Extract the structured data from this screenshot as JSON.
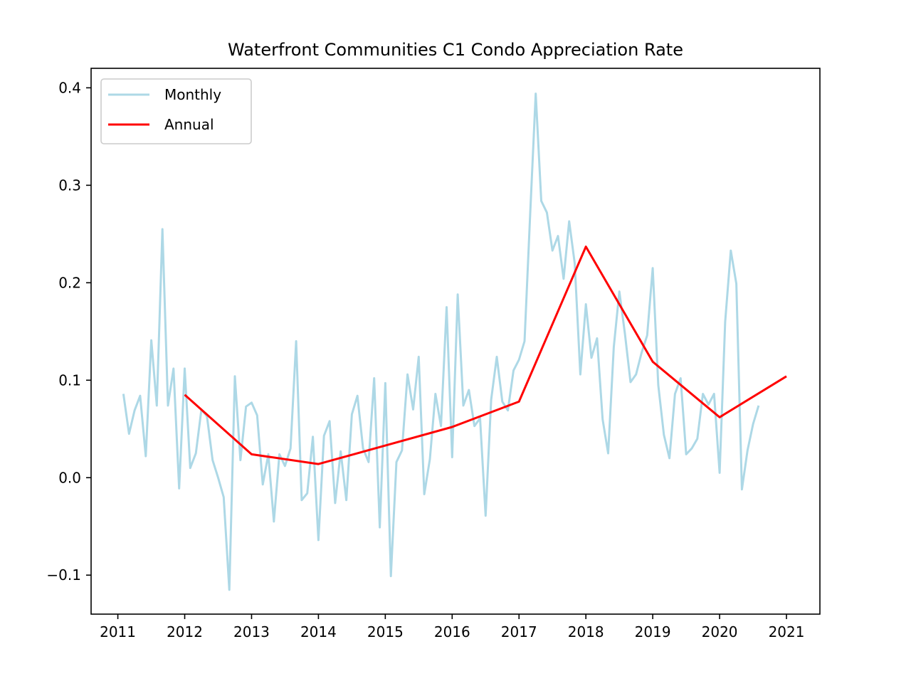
{
  "chart_data": {
    "type": "line",
    "title": "Waterfront Communities C1 Condo Appreciation Rate",
    "xlabel": "",
    "ylabel": "",
    "xlim": [
      2010.6,
      2021.5
    ],
    "ylim": [
      -0.14,
      0.42
    ],
    "x_ticks": [
      "2011",
      "2012",
      "2013",
      "2014",
      "2015",
      "2016",
      "2017",
      "2018",
      "2019",
      "2020",
      "2021"
    ],
    "y_ticks": [
      "−0.1",
      "0.0",
      "0.1",
      "0.2",
      "0.3",
      "0.4"
    ],
    "grid": false,
    "legend": {
      "position": "top-left"
    },
    "series": [
      {
        "name": "Monthly",
        "color": "#add8e6",
        "x": [
          2011.083,
          2011.167,
          2011.25,
          2011.333,
          2011.417,
          2011.5,
          2011.583,
          2011.667,
          2011.75,
          2011.833,
          2011.917,
          2012.0,
          2012.083,
          2012.167,
          2012.25,
          2012.333,
          2012.417,
          2012.5,
          2012.583,
          2012.667,
          2012.75,
          2012.833,
          2012.917,
          2013.0,
          2013.083,
          2013.167,
          2013.25,
          2013.333,
          2013.417,
          2013.5,
          2013.583,
          2013.667,
          2013.75,
          2013.833,
          2013.917,
          2014.0,
          2014.083,
          2014.167,
          2014.25,
          2014.333,
          2014.417,
          2014.5,
          2014.583,
          2014.667,
          2014.75,
          2014.833,
          2014.917,
          2015.0,
          2015.083,
          2015.167,
          2015.25,
          2015.333,
          2015.417,
          2015.5,
          2015.583,
          2015.667,
          2015.75,
          2015.833,
          2015.917,
          2016.0,
          2016.083,
          2016.167,
          2016.25,
          2016.333,
          2016.417,
          2016.5,
          2016.583,
          2016.667,
          2016.75,
          2016.833,
          2016.917,
          2017.0,
          2017.083,
          2017.167,
          2017.25,
          2017.333,
          2017.417,
          2017.5,
          2017.583,
          2017.667,
          2017.75,
          2017.833,
          2017.917,
          2018.0,
          2018.083,
          2018.167,
          2018.25,
          2018.333,
          2018.417,
          2018.5,
          2018.583,
          2018.667,
          2018.75,
          2018.833,
          2018.917,
          2019.0,
          2019.083,
          2019.167,
          2019.25,
          2019.333,
          2019.417,
          2019.5,
          2019.583,
          2019.667,
          2019.75,
          2019.833,
          2019.917,
          2020.0,
          2020.083,
          2020.167,
          2020.25,
          2020.333,
          2020.417,
          2020.5,
          2020.583
        ],
        "values": [
          0.086,
          0.045,
          0.069,
          0.084,
          0.022,
          0.141,
          0.074,
          0.255,
          0.074,
          0.112,
          -0.011,
          0.112,
          0.01,
          0.025,
          0.07,
          0.063,
          0.018,
          0.0,
          -0.02,
          -0.115,
          0.104,
          0.018,
          0.073,
          0.077,
          0.064,
          -0.007,
          0.024,
          -0.045,
          0.024,
          0.012,
          0.03,
          0.14,
          -0.023,
          -0.016,
          0.042,
          -0.064,
          0.043,
          0.058,
          -0.026,
          0.027,
          -0.023,
          0.065,
          0.084,
          0.03,
          0.016,
          0.102,
          -0.051,
          0.097,
          -0.101,
          0.016,
          0.028,
          0.106,
          0.07,
          0.124,
          -0.017,
          0.019,
          0.086,
          0.053,
          0.175,
          0.021,
          0.188,
          0.074,
          0.09,
          0.053,
          0.061,
          -0.039,
          0.08,
          0.124,
          0.078,
          0.069,
          0.11,
          0.121,
          0.14,
          0.27,
          0.394,
          0.284,
          0.272,
          0.233,
          0.248,
          0.204,
          0.263,
          0.22,
          0.106,
          0.178,
          0.123,
          0.143,
          0.06,
          0.025,
          0.134,
          0.191,
          0.148,
          0.098,
          0.106,
          0.128,
          0.146,
          0.215,
          0.095,
          0.044,
          0.02,
          0.086,
          0.102,
          0.024,
          0.03,
          0.04,
          0.086,
          0.075,
          0.086,
          0.005,
          0.16,
          0.233,
          0.199,
          -0.012,
          0.028,
          0.055,
          0.074
        ]
      },
      {
        "name": "Annual",
        "color": "#ff0000",
        "x": [
          2012,
          2013,
          2014,
          2015,
          2016,
          2017,
          2018,
          2019,
          2020,
          2021
        ],
        "values": [
          0.085,
          0.024,
          0.014,
          0.033,
          0.052,
          0.078,
          0.237,
          0.119,
          0.062,
          0.104
        ]
      }
    ]
  }
}
